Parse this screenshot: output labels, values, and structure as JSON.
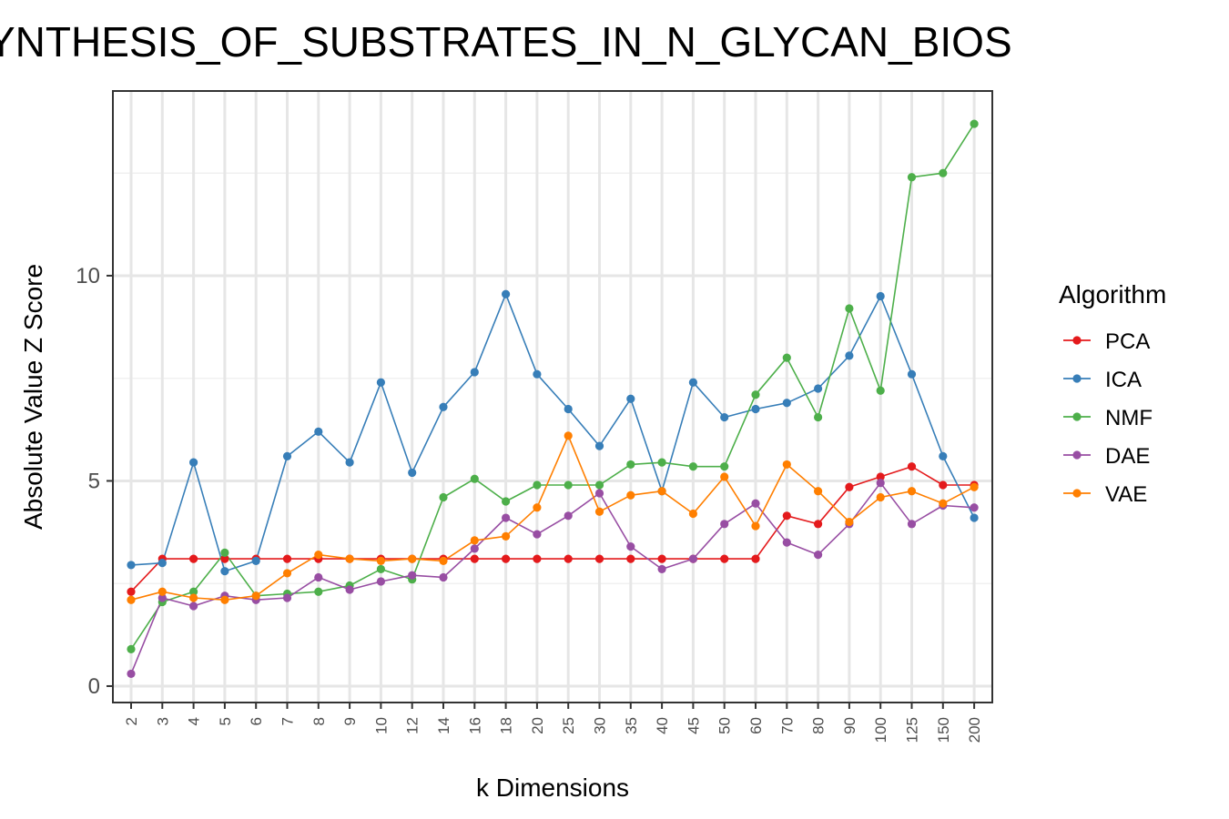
{
  "chart_data": {
    "type": "line",
    "title": "YNTHESIS_OF_SUBSTRATES_IN_N_GLYCAN_BIOS",
    "xlabel": "k Dimensions",
    "ylabel": "Absolute Value Z Score",
    "categories": [
      "2",
      "3",
      "4",
      "5",
      "6",
      "7",
      "8",
      "9",
      "10",
      "12",
      "14",
      "16",
      "18",
      "20",
      "25",
      "30",
      "35",
      "40",
      "45",
      "50",
      "60",
      "70",
      "80",
      "90",
      "100",
      "125",
      "150",
      "200"
    ],
    "ylim": [
      -0.4,
      14.5
    ],
    "yticks": [
      0,
      5,
      10
    ],
    "grid": true,
    "legend": {
      "title": "Algorithm",
      "position": "right"
    },
    "series": [
      {
        "name": "PCA",
        "color": "#e41a1c",
        "values": [
          2.3,
          3.1,
          3.1,
          3.1,
          3.1,
          3.1,
          3.1,
          3.1,
          3.1,
          3.1,
          3.1,
          3.1,
          3.1,
          3.1,
          3.1,
          3.1,
          3.1,
          3.1,
          3.1,
          3.1,
          3.1,
          4.15,
          3.95,
          4.85,
          5.1,
          5.35,
          4.9,
          4.9
        ]
      },
      {
        "name": "ICA",
        "color": "#377eb8",
        "values": [
          2.95,
          3.0,
          5.45,
          2.8,
          3.05,
          5.6,
          6.2,
          5.45,
          7.4,
          5.2,
          6.8,
          7.65,
          9.55,
          7.6,
          6.75,
          5.85,
          7.0,
          4.75,
          7.4,
          6.55,
          6.75,
          6.9,
          7.25,
          8.05,
          9.5,
          7.6,
          5.6,
          4.1
        ]
      },
      {
        "name": "NMF",
        "color": "#4daf4a",
        "values": [
          0.9,
          2.05,
          2.3,
          3.25,
          2.2,
          2.25,
          2.3,
          2.45,
          2.85,
          2.6,
          4.6,
          5.05,
          4.5,
          4.9,
          4.9,
          4.9,
          5.4,
          5.45,
          5.35,
          5.35,
          7.1,
          8.0,
          6.55,
          9.2,
          7.2,
          12.4,
          12.5,
          13.7
        ]
      },
      {
        "name": "DAE",
        "color": "#984ea3",
        "values": [
          0.3,
          2.15,
          1.95,
          2.2,
          2.1,
          2.15,
          2.65,
          2.35,
          2.55,
          2.7,
          2.65,
          3.35,
          4.1,
          3.7,
          4.15,
          4.7,
          3.4,
          2.85,
          3.1,
          3.95,
          4.45,
          3.5,
          3.2,
          3.95,
          4.95,
          3.95,
          4.4,
          4.35
        ]
      },
      {
        "name": "VAE",
        "color": "#ff7f00",
        "values": [
          2.1,
          2.3,
          2.15,
          2.1,
          2.2,
          2.75,
          3.2,
          3.1,
          3.05,
          3.1,
          3.05,
          3.55,
          3.65,
          4.35,
          6.1,
          4.25,
          4.65,
          4.75,
          4.2,
          5.1,
          3.9,
          5.4,
          4.75,
          4.0,
          4.6,
          4.75,
          4.45,
          4.85
        ]
      }
    ]
  }
}
